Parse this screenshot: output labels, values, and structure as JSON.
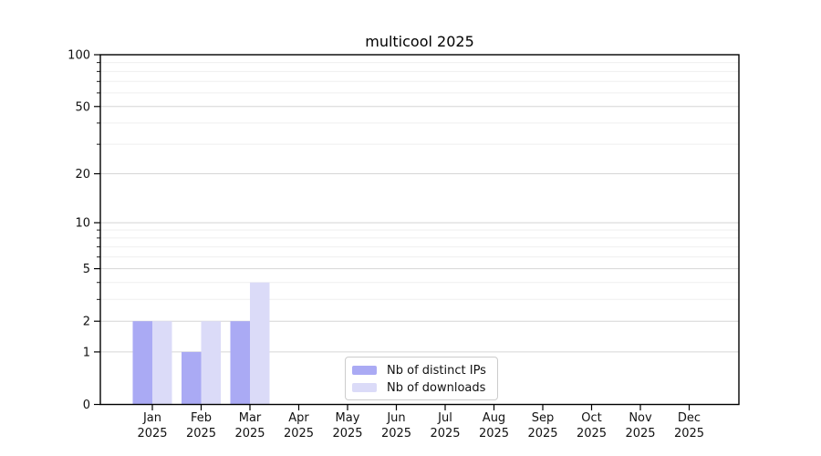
{
  "chart_data": {
    "type": "bar",
    "title": "multicool 2025",
    "categories": [
      "Jan",
      "Feb",
      "Mar",
      "Apr",
      "May",
      "Jun",
      "Jul",
      "Aug",
      "Sep",
      "Oct",
      "Nov",
      "Dec"
    ],
    "category_year": "2025",
    "series": [
      {
        "name": "Nb of distinct IPs",
        "color": "#aaaaf4",
        "values": [
          2,
          1,
          2,
          0,
          0,
          0,
          0,
          0,
          0,
          0,
          0,
          0
        ]
      },
      {
        "name": "Nb of downloads",
        "color": "#dbdbf8",
        "values": [
          2,
          2,
          4,
          0,
          0,
          0,
          0,
          0,
          0,
          0,
          0,
          0
        ]
      }
    ],
    "yscale": "log1p",
    "ylim": [
      0,
      100
    ],
    "y_major_ticks": [
      0,
      1,
      2,
      5,
      10,
      20,
      50,
      100
    ],
    "y_minor_ticks": [
      3,
      4,
      6,
      7,
      8,
      9,
      30,
      40,
      60,
      70,
      80,
      90
    ],
    "grid": "horizontal-only",
    "legend_position": "lower-center",
    "colors": {
      "major_grid": "#d6d6d6",
      "minor_grid": "#efefef",
      "axis": "#000000",
      "tick_label": "#111111",
      "background": "#ffffff"
    }
  }
}
